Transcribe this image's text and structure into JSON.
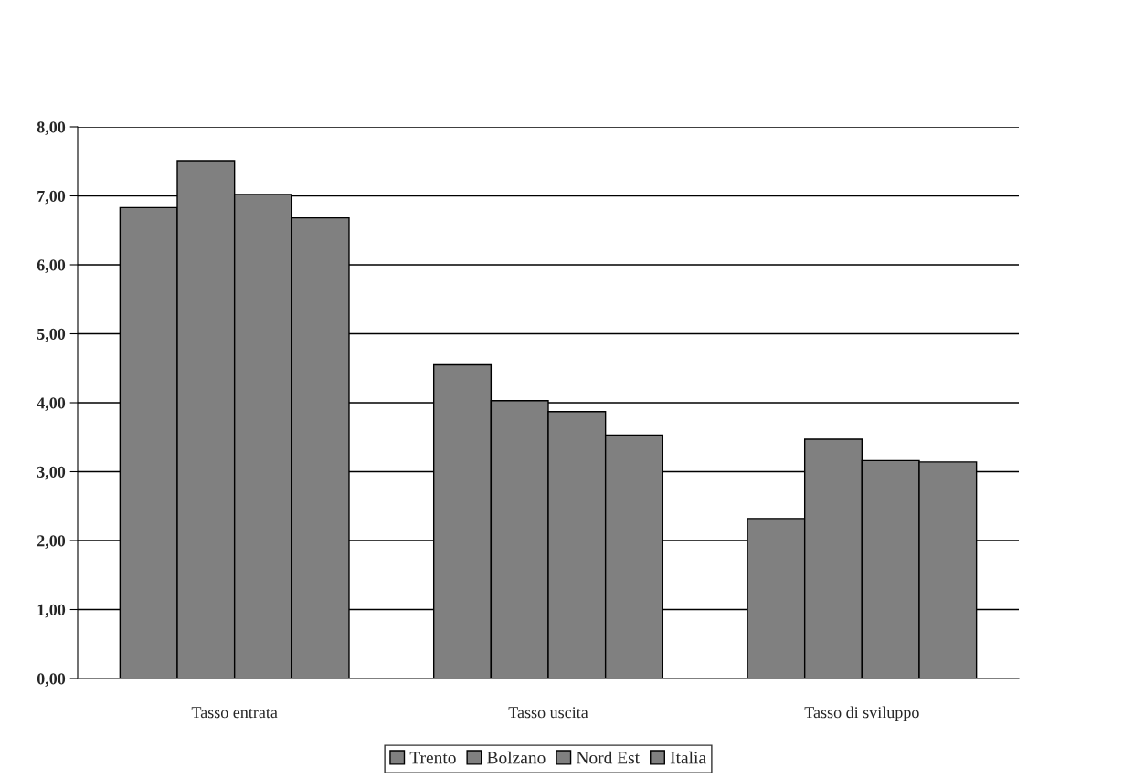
{
  "chart_data": {
    "type": "bar",
    "categories": [
      "Tasso entrata",
      "Tasso uscita",
      "Tasso di sviluppo"
    ],
    "series": [
      {
        "name": "Trento",
        "color": "#808080",
        "values": [
          6.83,
          4.55,
          2.32
        ]
      },
      {
        "name": "Bolzano",
        "color": "#808080",
        "values": [
          7.51,
          4.03,
          3.47
        ]
      },
      {
        "name": "Nord Est",
        "color": "#808080",
        "values": [
          7.02,
          3.87,
          3.16
        ]
      },
      {
        "name": "Italia",
        "color": "#808080",
        "values": [
          6.68,
          3.53,
          3.14
        ]
      }
    ],
    "ylim": [
      0,
      8
    ],
    "yticks": [
      {
        "value": 0,
        "label": "0,00"
      },
      {
        "value": 1,
        "label": "1,00"
      },
      {
        "value": 2,
        "label": "2,00"
      },
      {
        "value": 3,
        "label": "3,00"
      },
      {
        "value": 4,
        "label": "4,00"
      },
      {
        "value": 5,
        "label": "5,00"
      },
      {
        "value": 6,
        "label": "6,00"
      },
      {
        "value": 7,
        "label": "7,00"
      },
      {
        "value": 8,
        "label": "8,00"
      }
    ],
    "grid": "y",
    "legend": "bottom"
  }
}
